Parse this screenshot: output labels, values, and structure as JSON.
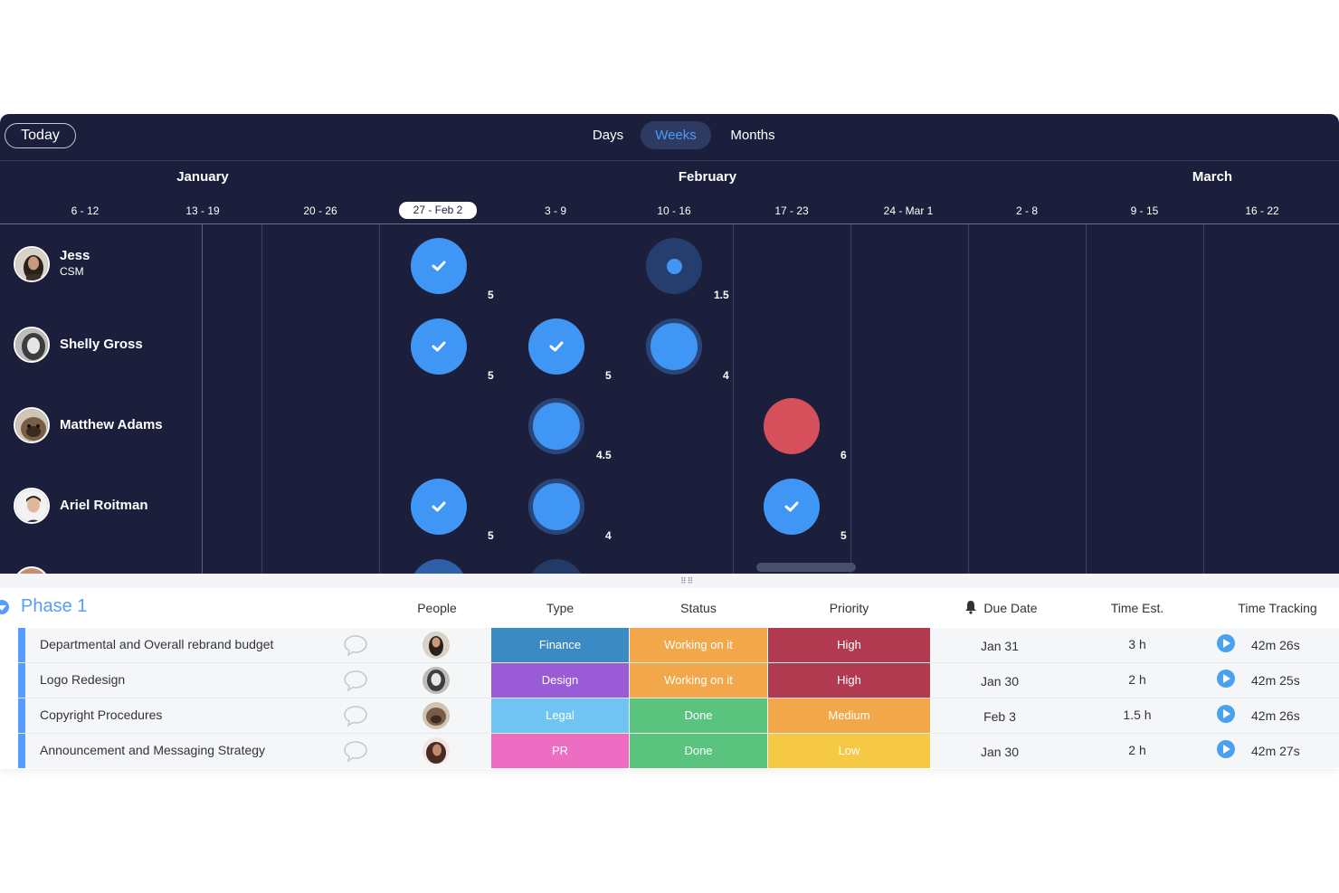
{
  "toolbar": {
    "today_label": "Today",
    "tabs": [
      {
        "label": "Days",
        "active": false
      },
      {
        "label": "Weeks",
        "active": true
      },
      {
        "label": "Months",
        "active": false
      }
    ]
  },
  "timeline": {
    "months": [
      "January",
      "February",
      "March"
    ],
    "weeks": [
      "6 - 12",
      "13 - 19",
      "20 - 26",
      "27 - Feb 2",
      "3 - 9",
      "10 - 16",
      "17 - 23",
      "24 - Mar 1",
      "2 - 8",
      "9 - 15",
      "16 - 22"
    ],
    "current_week": "27 - Feb 2"
  },
  "people": [
    {
      "name": "Jess",
      "role": "CSM"
    },
    {
      "name": "Shelly Gross",
      "role": ""
    },
    {
      "name": "Matthew Adams",
      "role": ""
    },
    {
      "name": "Ariel Roitman",
      "role": ""
    }
  ],
  "workload": {
    "jess": [
      {
        "week": "27 - Feb 2",
        "hours": "5",
        "state": "done"
      },
      {
        "week": "10 - 16",
        "hours": "1.5",
        "state": "light"
      }
    ],
    "shelly": [
      {
        "week": "27 - Feb 2",
        "hours": "5",
        "state": "done"
      },
      {
        "week": "3 - 9",
        "hours": "5",
        "state": "done"
      },
      {
        "week": "10 - 16",
        "hours": "4",
        "state": "in-progress"
      }
    ],
    "matthew": [
      {
        "week": "3 - 9",
        "hours": "4.5",
        "state": "in-progress"
      },
      {
        "week": "17 - 23",
        "hours": "6",
        "state": "overloaded"
      }
    ],
    "ariel": [
      {
        "week": "27 - Feb 2",
        "hours": "5",
        "state": "done"
      },
      {
        "week": "3 - 9",
        "hours": "4",
        "state": "in-progress"
      },
      {
        "week": "17 - 23",
        "hours": "5",
        "state": "done"
      }
    ]
  },
  "board": {
    "group_title": "Phase 1",
    "columns": {
      "people": "People",
      "type": "Type",
      "status": "Status",
      "priority": "Priority",
      "due": "Due Date",
      "est": "Time Est.",
      "tracking": "Time Tracking"
    },
    "rows": [
      {
        "name": "Departmental and Overall rebrand budget",
        "type": "Finance",
        "type_color": "#3c8ac4",
        "status": "Working on it",
        "status_color": "#f2a84a",
        "priority": "High",
        "priority_color": "#b23a50",
        "due": "Jan 31",
        "est": "3 h",
        "tracking": "42m 26s"
      },
      {
        "name": "Logo Redesign",
        "type": "Design",
        "type_color": "#9a5bd6",
        "status": "Working on it",
        "status_color": "#f2a84a",
        "priority": "High",
        "priority_color": "#b23a50",
        "due": "Jan 30",
        "est": "2 h",
        "tracking": "42m 25s"
      },
      {
        "name": "Copyright Procedures",
        "type": "Legal",
        "type_color": "#6fc4f2",
        "status": "Done",
        "status_color": "#5ac47e",
        "priority": "Medium",
        "priority_color": "#f2a84a",
        "due": "Feb 3",
        "est": "1.5 h",
        "tracking": "42m 26s"
      },
      {
        "name": "Announcement and Messaging Strategy",
        "type": "PR",
        "type_color": "#ec6dc2",
        "status": "Done",
        "status_color": "#5ac47e",
        "priority": "Low",
        "priority_color": "#f6c944",
        "due": "Jan 30",
        "est": "2 h",
        "tracking": "42m 27s"
      }
    ]
  }
}
